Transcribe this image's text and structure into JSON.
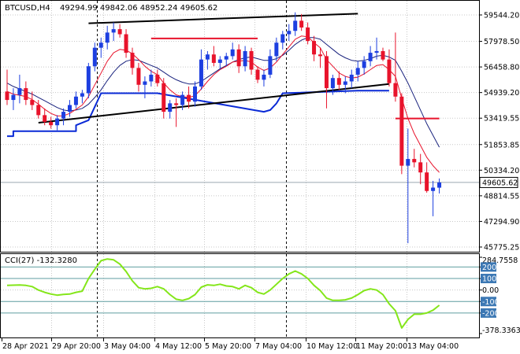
{
  "header": {
    "symbol": "BTCUSD,H4",
    "ohlc": "49294.99 49842.06 48952.24 49605.62"
  },
  "indicator": {
    "label": "CCI(27) -132.3280"
  },
  "colors": {
    "bull": "#1d3fe0",
    "bear": "#e8132b",
    "ma_fast": "#e8132b",
    "ma_slow": "#1a237e",
    "stop_line": "#0a2ad6",
    "trend_line": "#000000",
    "cci_line": "#84e61a",
    "level_line": "#5f9ea0",
    "level_badge": "#3c78b4",
    "grid": "#c8c8c8"
  },
  "chart_data": [
    {
      "type": "candlestick",
      "title": "BTCUSD,H4",
      "y_ticks": [
        "59544.20",
        "57978.50",
        "56458.80",
        "54939.20",
        "53419.55",
        "51853.85",
        "50334.20",
        "48814.55",
        "47294.90",
        "45775.25"
      ],
      "ylim": [
        45775.25,
        60300
      ],
      "current_price": "49605.62",
      "x_ticks": [
        "28 Apr 2021",
        "29 Apr 20:00",
        "3 May 04:00",
        "4 May 12:00",
        "5 May 20:00",
        "7 May 04:00",
        "10 May 12:00",
        "11 May 20:00",
        "13 May 04:00"
      ],
      "candles": [
        {
          "o": 55000,
          "h": 56300,
          "l": 54200,
          "c": 54500
        },
        {
          "o": 54500,
          "h": 55200,
          "l": 53900,
          "c": 54800
        },
        {
          "o": 54800,
          "h": 56000,
          "l": 54300,
          "c": 55200
        },
        {
          "o": 55200,
          "h": 55600,
          "l": 54200,
          "c": 54500
        },
        {
          "o": 54500,
          "h": 55000,
          "l": 53900,
          "c": 54200
        },
        {
          "o": 54200,
          "h": 54500,
          "l": 53400,
          "c": 53600
        },
        {
          "o": 53600,
          "h": 54000,
          "l": 53000,
          "c": 53200
        },
        {
          "o": 53200,
          "h": 53500,
          "l": 52800,
          "c": 53000
        },
        {
          "o": 53000,
          "h": 53600,
          "l": 52700,
          "c": 53400
        },
        {
          "o": 53400,
          "h": 54000,
          "l": 53000,
          "c": 53800
        },
        {
          "o": 53800,
          "h": 54500,
          "l": 53500,
          "c": 54200
        },
        {
          "o": 54200,
          "h": 55000,
          "l": 54000,
          "c": 54700
        },
        {
          "o": 54700,
          "h": 55100,
          "l": 54300,
          "c": 54900
        },
        {
          "o": 54900,
          "h": 56700,
          "l": 54600,
          "c": 56500
        },
        {
          "o": 56500,
          "h": 57900,
          "l": 56200,
          "c": 57600
        },
        {
          "o": 57600,
          "h": 58200,
          "l": 57000,
          "c": 57900
        },
        {
          "o": 57900,
          "h": 58900,
          "l": 57500,
          "c": 58500
        },
        {
          "o": 58500,
          "h": 59100,
          "l": 58000,
          "c": 58700
        },
        {
          "o": 58700,
          "h": 59000,
          "l": 58200,
          "c": 58400
        },
        {
          "o": 58400,
          "h": 58700,
          "l": 57000,
          "c": 57300
        },
        {
          "o": 57300,
          "h": 57600,
          "l": 56000,
          "c": 56400
        },
        {
          "o": 56400,
          "h": 56700,
          "l": 55000,
          "c": 55400
        },
        {
          "o": 55400,
          "h": 55900,
          "l": 54600,
          "c": 55600
        },
        {
          "o": 55600,
          "h": 56300,
          "l": 55300,
          "c": 56000
        },
        {
          "o": 56000,
          "h": 56300,
          "l": 55300,
          "c": 55500
        },
        {
          "o": 55500,
          "h": 55800,
          "l": 53400,
          "c": 53800
        },
        {
          "o": 53800,
          "h": 54500,
          "l": 53400,
          "c": 54300
        },
        {
          "o": 54300,
          "h": 54600,
          "l": 52900,
          "c": 54200
        },
        {
          "o": 54200,
          "h": 55000,
          "l": 53900,
          "c": 54800
        },
        {
          "o": 54800,
          "h": 55300,
          "l": 54000,
          "c": 54400
        },
        {
          "o": 54400,
          "h": 55600,
          "l": 54100,
          "c": 55300
        },
        {
          "o": 55300,
          "h": 57500,
          "l": 55100,
          "c": 56900
        },
        {
          "o": 56900,
          "h": 57400,
          "l": 56300,
          "c": 57200
        },
        {
          "o": 57200,
          "h": 57700,
          "l": 56500,
          "c": 56700
        },
        {
          "o": 56700,
          "h": 57100,
          "l": 56300,
          "c": 56900
        },
        {
          "o": 56900,
          "h": 57300,
          "l": 56500,
          "c": 57100
        },
        {
          "o": 57100,
          "h": 57900,
          "l": 56900,
          "c": 57500
        },
        {
          "o": 57500,
          "h": 57800,
          "l": 56100,
          "c": 56500
        },
        {
          "o": 56500,
          "h": 57700,
          "l": 56200,
          "c": 57400
        },
        {
          "o": 57400,
          "h": 57600,
          "l": 56000,
          "c": 56300
        },
        {
          "o": 56300,
          "h": 56500,
          "l": 55500,
          "c": 55700
        },
        {
          "o": 55700,
          "h": 56300,
          "l": 55300,
          "c": 56000
        },
        {
          "o": 56000,
          "h": 57500,
          "l": 55800,
          "c": 57100
        },
        {
          "o": 57100,
          "h": 58200,
          "l": 56800,
          "c": 57900
        },
        {
          "o": 57900,
          "h": 58600,
          "l": 57500,
          "c": 58400
        },
        {
          "o": 58400,
          "h": 59000,
          "l": 58000,
          "c": 58600
        },
        {
          "o": 58600,
          "h": 59700,
          "l": 58300,
          "c": 59200
        },
        {
          "o": 59200,
          "h": 59600,
          "l": 58600,
          "c": 58800
        },
        {
          "o": 58800,
          "h": 59100,
          "l": 57800,
          "c": 58000
        },
        {
          "o": 58000,
          "h": 58300,
          "l": 56800,
          "c": 57200
        },
        {
          "o": 57200,
          "h": 57600,
          "l": 56400,
          "c": 57100
        },
        {
          "o": 57100,
          "h": 57400,
          "l": 54000,
          "c": 55200
        },
        {
          "o": 55200,
          "h": 56000,
          "l": 54800,
          "c": 55800
        },
        {
          "o": 55800,
          "h": 56200,
          "l": 55100,
          "c": 55400
        },
        {
          "o": 55400,
          "h": 55900,
          "l": 54900,
          "c": 55600
        },
        {
          "o": 55600,
          "h": 56300,
          "l": 55200,
          "c": 56000
        },
        {
          "o": 56000,
          "h": 56800,
          "l": 55600,
          "c": 56400
        },
        {
          "o": 56400,
          "h": 57100,
          "l": 56000,
          "c": 56800
        },
        {
          "o": 56800,
          "h": 57700,
          "l": 56500,
          "c": 57300
        },
        {
          "o": 57300,
          "h": 58200,
          "l": 56900,
          "c": 57400
        },
        {
          "o": 57400,
          "h": 57600,
          "l": 56800,
          "c": 56900
        },
        {
          "o": 56900,
          "h": 57500,
          "l": 55300,
          "c": 55500
        },
        {
          "o": 55500,
          "h": 58500,
          "l": 54400,
          "c": 54700
        },
        {
          "o": 54700,
          "h": 54900,
          "l": 50100,
          "c": 50600
        },
        {
          "o": 50600,
          "h": 52800,
          "l": 46000,
          "c": 51000
        },
        {
          "o": 51000,
          "h": 51600,
          "l": 50500,
          "c": 50800
        },
        {
          "o": 50800,
          "h": 51300,
          "l": 49500,
          "c": 50200
        },
        {
          "o": 50200,
          "h": 50800,
          "l": 49000,
          "c": 49100
        },
        {
          "o": 49100,
          "h": 49700,
          "l": 47600,
          "c": 49300
        },
        {
          "o": 49294.99,
          "h": 49842.06,
          "l": 48952.24,
          "c": 49605.62
        }
      ],
      "ma_fast": [
        55000,
        54850,
        54780,
        54700,
        54520,
        54250,
        53950,
        53700,
        53550,
        53560,
        53700,
        53950,
        54200,
        54700,
        55400,
        56100,
        56800,
        57300,
        57500,
        57450,
        57250,
        56900,
        56500,
        56200,
        56000,
        55500,
        55100,
        54800,
        54700,
        54650,
        54750,
        55150,
        55600,
        56000,
        56300,
        56500,
        56750,
        56800,
        56850,
        56750,
        56450,
        56250,
        56400,
        56750,
        57200,
        57650,
        58100,
        58300,
        58250,
        57900,
        57600,
        56900,
        56500,
        56100,
        55900,
        55800,
        55850,
        56050,
        56300,
        56550,
        56600,
        56300,
        55900,
        54600,
        53400,
        52500,
        51800,
        51100,
        50600,
        50200
      ],
      "ma_slow": [
        55500,
        55300,
        55150,
        55000,
        54850,
        54650,
        54450,
        54250,
        54050,
        53900,
        53850,
        53900,
        54000,
        54250,
        54650,
        55100,
        55650,
        56150,
        56550,
        56800,
        56900,
        56850,
        56700,
        56550,
        56400,
        56150,
        55900,
        55700,
        55550,
        55450,
        55450,
        55600,
        55850,
        56100,
        56350,
        56550,
        56750,
        56900,
        57000,
        57050,
        56950,
        56850,
        56850,
        56950,
        57150,
        57450,
        57800,
        58050,
        58200,
        58200,
        58100,
        57800,
        57500,
        57200,
        57000,
        56850,
        56800,
        56850,
        56950,
        57100,
        57150,
        57050,
        56850,
        56200,
        55500,
        54700,
        53900,
        53100,
        52400,
        51700
      ],
      "stop_line": [
        {
          "i": 0,
          "v": 52350
        },
        {
          "i": 1,
          "v": 52350
        },
        {
          "i": 1,
          "v": 52650
        },
        {
          "i": 11,
          "v": 52650
        },
        {
          "i": 11,
          "v": 53000
        },
        {
          "i": 13,
          "v": 53300
        },
        {
          "i": 15,
          "v": 54900
        },
        {
          "i": 24,
          "v": 54900
        },
        {
          "i": 41,
          "v": 53800
        },
        {
          "i": 42,
          "v": 53900
        },
        {
          "i": 43,
          "v": 54300
        },
        {
          "i": 44,
          "v": 54900
        },
        {
          "i": 56,
          "v": 55050
        },
        {
          "i": 61,
          "v": 55050
        }
      ],
      "resistance_line": [
        {
          "i": 13,
          "v": 59050
        },
        {
          "i": 56,
          "v": 59620
        }
      ],
      "support_line": [
        {
          "i": 5,
          "v": 53150
        },
        {
          "i": 61,
          "v": 55450
        }
      ],
      "red_level_upper": [
        {
          "i": 23,
          "v": 58150
        },
        {
          "i": 40,
          "v": 58150
        }
      ],
      "red_level_lower": [
        {
          "i": 62,
          "v": 53400
        },
        {
          "i": 69,
          "v": 53400
        }
      ]
    },
    {
      "type": "line",
      "title": "CCI(27) -132.3280",
      "y_ticks": [
        "284.7558",
        "200",
        "100",
        "0.00",
        "-100",
        "-200",
        "-378.3363"
      ],
      "ylim": [
        -378.3363,
        284.7558
      ],
      "levels": [
        200,
        100,
        -100,
        -200
      ],
      "values": [
        40,
        42,
        44,
        40,
        30,
        0,
        -20,
        -35,
        -45,
        -38,
        -35,
        -20,
        -10,
        100,
        180,
        255,
        270,
        262,
        225,
        160,
        80,
        20,
        10,
        15,
        30,
        10,
        -40,
        -80,
        -90,
        -75,
        -40,
        25,
        45,
        40,
        50,
        35,
        30,
        10,
        40,
        20,
        -20,
        -35,
        0,
        50,
        100,
        140,
        165,
        140,
        100,
        40,
        -5,
        -70,
        -90,
        -90,
        -85,
        -70,
        -40,
        -5,
        10,
        0,
        -40,
        -120,
        -180,
        -330,
        -255,
        -210,
        -210,
        -200,
        -175,
        -132.33
      ]
    }
  ]
}
